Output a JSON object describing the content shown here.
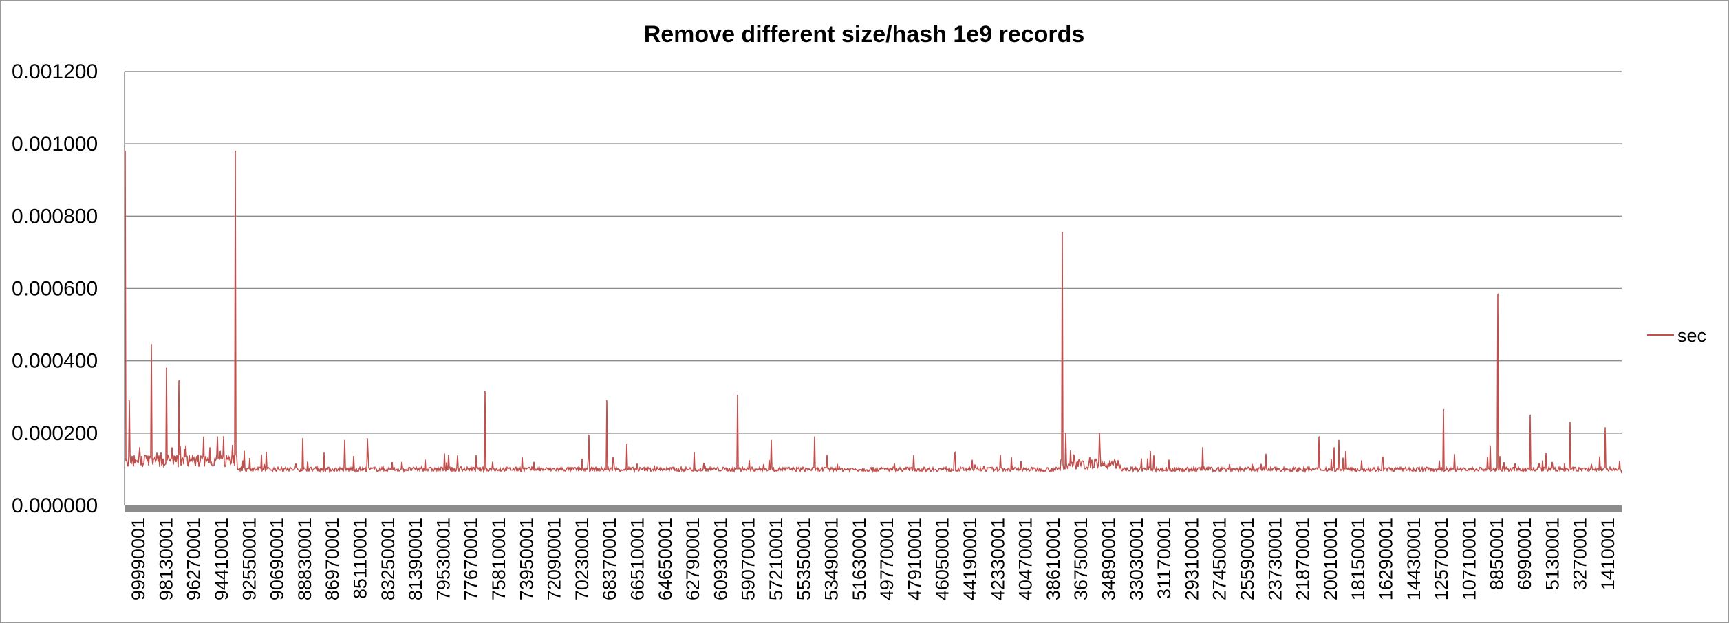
{
  "chart_data": {
    "type": "line",
    "title": "Remove different size/hash 1e9 records",
    "xlabel": "",
    "ylabel": "",
    "ylim": [
      0,
      0.0012
    ],
    "y_ticks": [
      "0.000000",
      "0.000200",
      "0.000400",
      "0.000600",
      "0.000800",
      "0.001000",
      "0.001200"
    ],
    "x_ticks": [
      "99990001",
      "98130001",
      "96270001",
      "94410001",
      "92550001",
      "90690001",
      "88830001",
      "86970001",
      "85110001",
      "83250001",
      "81390001",
      "79530001",
      "77670001",
      "75810001",
      "73950001",
      "72090001",
      "70230001",
      "68370001",
      "66510001",
      "64650001",
      "62790001",
      "60930001",
      "59070001",
      "57210001",
      "55350001",
      "53490001",
      "51630001",
      "49770001",
      "47910001",
      "46050001",
      "44190001",
      "42330001",
      "40470001",
      "38610001",
      "36750001",
      "34890001",
      "33030001",
      "31170001",
      "29310001",
      "27450001",
      "25590001",
      "23730001",
      "21870001",
      "20010001",
      "18150001",
      "16290001",
      "14430001",
      "12570001",
      "10710001",
      "8850001",
      "6990001",
      "5130001",
      "3270001",
      "1410001"
    ],
    "grid": true,
    "legend_position": "right",
    "series": [
      {
        "name": "sec",
        "color": "#c0504d",
        "baseline": 8.8e-05,
        "x": [
          99990001,
          99960001,
          99920001,
          99700001,
          99000001,
          98190001,
          97200001,
          96880001,
          96350001,
          95900001,
          94700001,
          94300001,
          93800001,
          93600001,
          93400001,
          92580001,
          92000001,
          91650001,
          90850001,
          88100001,
          85300001,
          83800001,
          75930001,
          69000001,
          67800001,
          66430001,
          59070001,
          56800001,
          53900001,
          37350001,
          37150001,
          36600001,
          34900001,
          31500001,
          28000001,
          20200001,
          19200001,
          18900001,
          11880001,
          8800001,
          8250001,
          6100001,
          3450001,
          1100001,
          0
        ],
        "values": [
          0.000105,
          0.00098,
          0.000125,
          0.00029,
          0.00016,
          0.000445,
          0.00038,
          0.00013,
          0.000345,
          0.000165,
          0.00019,
          0.00016,
          0.00019,
          0.00015,
          0.00019,
          0.00098,
          0.00015,
          0.00013,
          0.00014,
          0.000185,
          0.00018,
          0.000185,
          0.000315,
          0.000195,
          0.00029,
          0.00017,
          0.000305,
          0.00018,
          0.00019,
          0.000755,
          0.0002,
          0.00014,
          0.0002,
          0.00015,
          0.00016,
          0.00019,
          0.00016,
          0.00018,
          0.000265,
          0.000165,
          0.000585,
          0.00025,
          0.00023,
          0.000215,
          9e-05
        ]
      }
    ]
  }
}
